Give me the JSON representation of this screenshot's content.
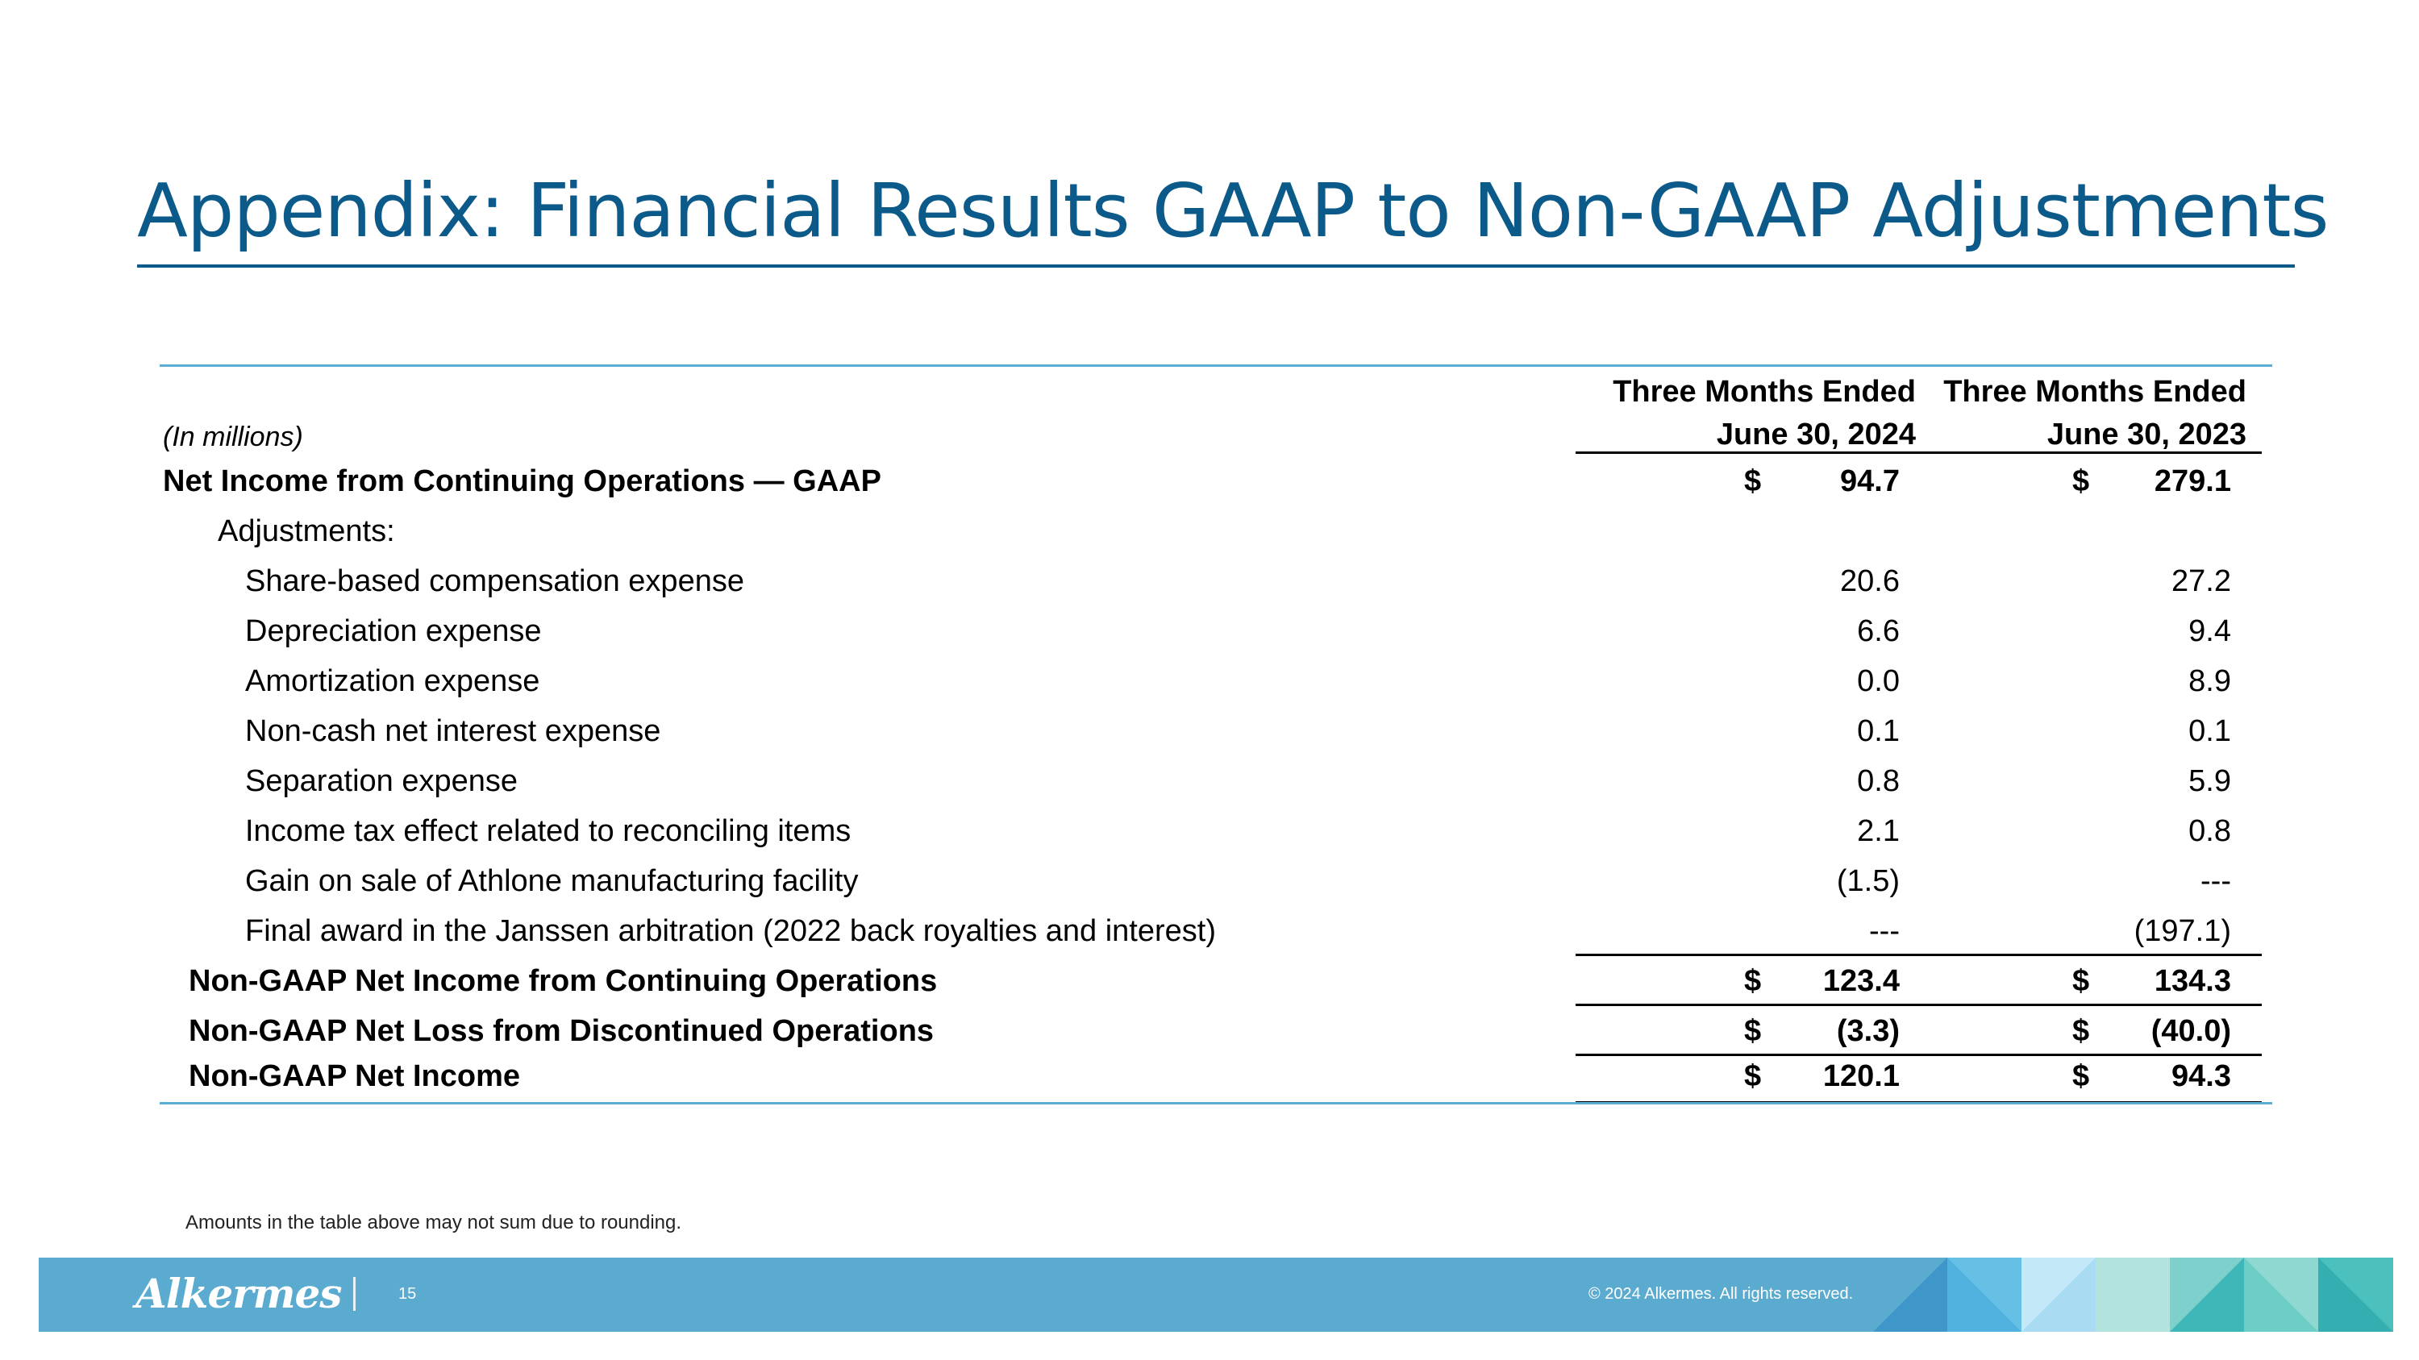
{
  "slide": {
    "title": "Appendix: Financial Results GAAP to Non-GAAP Adjustments",
    "footnote": "Amounts in the table above may not sum due to rounding.",
    "page_number": "15",
    "copyright": "© 2024 Alkermes. All rights reserved.",
    "logo_text": "Alkermes",
    "colors": {
      "title": "#0b5a8a",
      "footer": "#5aabcf",
      "table_rule": "#5aaed4"
    }
  },
  "table": {
    "units_label": "(In millions)",
    "columns": [
      {
        "line1": "Three Months Ended",
        "line2": "June 30, 2024"
      },
      {
        "line1": "Three Months Ended",
        "line2": "June 30, 2023"
      }
    ],
    "rows": [
      {
        "label": "Net Income from Continuing Operations — GAAP",
        "c1_dollar": "$",
        "c1": "94.7",
        "c2_dollar": "$",
        "c2": "279.1"
      },
      {
        "label": "Adjustments:"
      },
      {
        "label": "Share-based compensation expense",
        "c1": "20.6",
        "c2": "27.2"
      },
      {
        "label": "Depreciation expense",
        "c1": "6.6",
        "c2": "9.4"
      },
      {
        "label": "Amortization expense",
        "c1": "0.0",
        "c2": "8.9"
      },
      {
        "label": "Non-cash net interest expense",
        "c1": "0.1",
        "c2": "0.1"
      },
      {
        "label": "Separation expense",
        "c1": "0.8",
        "c2": "5.9"
      },
      {
        "label": "Income tax effect related to reconciling items",
        "c1": "2.1",
        "c2": "0.8"
      },
      {
        "label": "Gain on sale of Athlone manufacturing facility",
        "c1": "(1.5)",
        "c2": "---"
      },
      {
        "label": "Final award in the Janssen arbitration (2022 back royalties and interest)",
        "c1": "---",
        "c2": "(197.1)"
      },
      {
        "label": "Non-GAAP Net Income from Continuing Operations",
        "c1_dollar": "$",
        "c1": "123.4",
        "c2_dollar": "$",
        "c2": "134.3"
      },
      {
        "label": "Non-GAAP Net Loss from Discontinued Operations",
        "c1_dollar": "$",
        "c1": "(3.3)",
        "c2_dollar": "$",
        "c2": "(40.0)"
      },
      {
        "label": "Non-GAAP Net Income",
        "c1_dollar": "$",
        "c1": "120.1",
        "c2_dollar": "$",
        "c2": "94.3"
      }
    ]
  }
}
